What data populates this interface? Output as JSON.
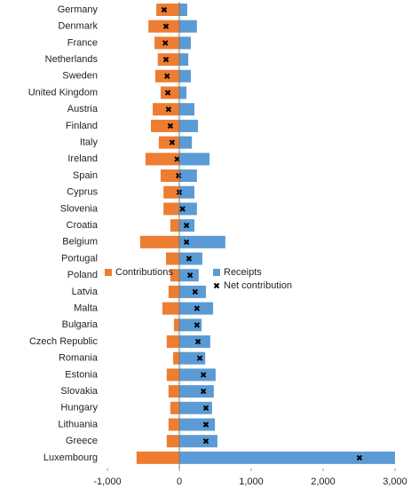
{
  "chart_data": {
    "type": "bar",
    "orientation": "horizontal",
    "categories": [
      "Germany",
      "Denmark",
      "France",
      "Netherlands",
      "Sweden",
      "United Kingdom",
      "Austria",
      "Finland",
      "Italy",
      "Ireland",
      "Spain",
      "Cyprus",
      "Slovenia",
      "Croatia",
      "Belgium",
      "Portugal",
      "Poland",
      "Latvia",
      "Malta",
      "Bulgaria",
      "Czech Republic",
      "Romania",
      "Estonia",
      "Slovakia",
      "Hungary",
      "Lithuania",
      "Greece",
      "Luxembourg"
    ],
    "series": [
      {
        "name": "Contributions",
        "color": "#ed7d31",
        "kind": "bar",
        "values": [
          -320,
          -430,
          -345,
          -300,
          -335,
          -260,
          -370,
          -395,
          -285,
          -470,
          -260,
          -220,
          -220,
          -125,
          -545,
          -185,
          -125,
          -150,
          -235,
          -75,
          -175,
          -85,
          -175,
          -150,
          -125,
          -150,
          -175,
          -595
        ]
      },
      {
        "name": "Receipts",
        "color": "#5b9bd5",
        "kind": "bar",
        "values": [
          110,
          245,
          160,
          125,
          160,
          100,
          210,
          260,
          175,
          420,
          245,
          210,
          245,
          210,
          640,
          320,
          270,
          370,
          470,
          310,
          430,
          360,
          505,
          480,
          455,
          495,
          530,
          3000
        ]
      },
      {
        "name": "Net contribution",
        "color": "#000000",
        "kind": "marker",
        "values": [
          -210,
          -185,
          -195,
          -185,
          -170,
          -160,
          -150,
          -125,
          -100,
          -30,
          -10,
          0,
          45,
          100,
          100,
          135,
          150,
          220,
          245,
          245,
          260,
          285,
          335,
          335,
          370,
          370,
          370,
          2505
        ]
      }
    ],
    "xlim": [
      -1000,
      3000
    ],
    "xticks": [
      {
        "value": -1000,
        "label": "-1,000"
      },
      0,
      {
        "value": 1000,
        "label": "1,000"
      },
      {
        "value": 2000,
        "label": "2,000"
      },
      {
        "value": 3000,
        "label": "3,000"
      }
    ]
  }
}
